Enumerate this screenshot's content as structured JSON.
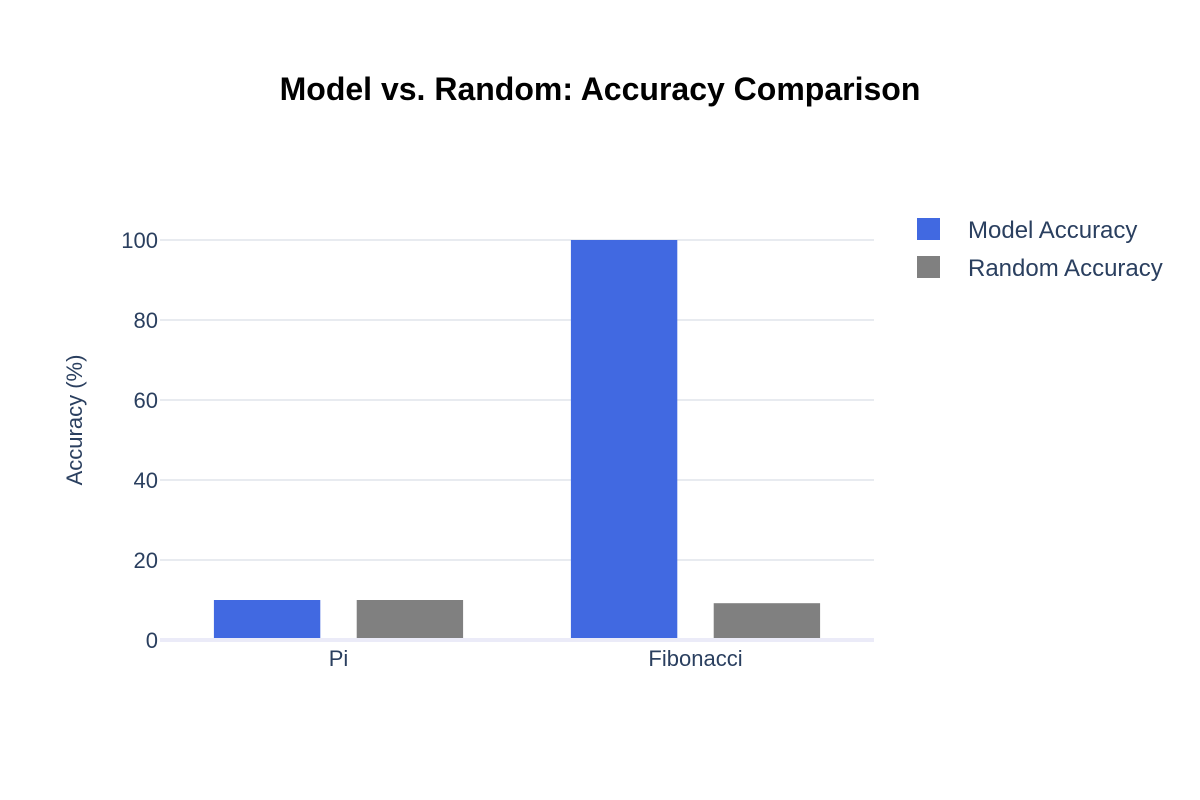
{
  "chart_data": {
    "type": "bar",
    "title": "Model vs. Random: Accuracy Comparison",
    "xlabel": "",
    "ylabel": "Accuracy (%)",
    "categories": [
      "Pi",
      "Fibonacci"
    ],
    "series": [
      {
        "name": "Model Accuracy",
        "values": [
          10,
          100
        ],
        "color": "#4169e1"
      },
      {
        "name": "Random Accuracy",
        "values": [
          10,
          9.2
        ],
        "color": "#808080"
      }
    ],
    "ylim": [
      0,
      100
    ],
    "yticks": [
      0,
      20,
      40,
      60,
      80,
      100
    ],
    "grid": true,
    "legend": "top-right"
  }
}
